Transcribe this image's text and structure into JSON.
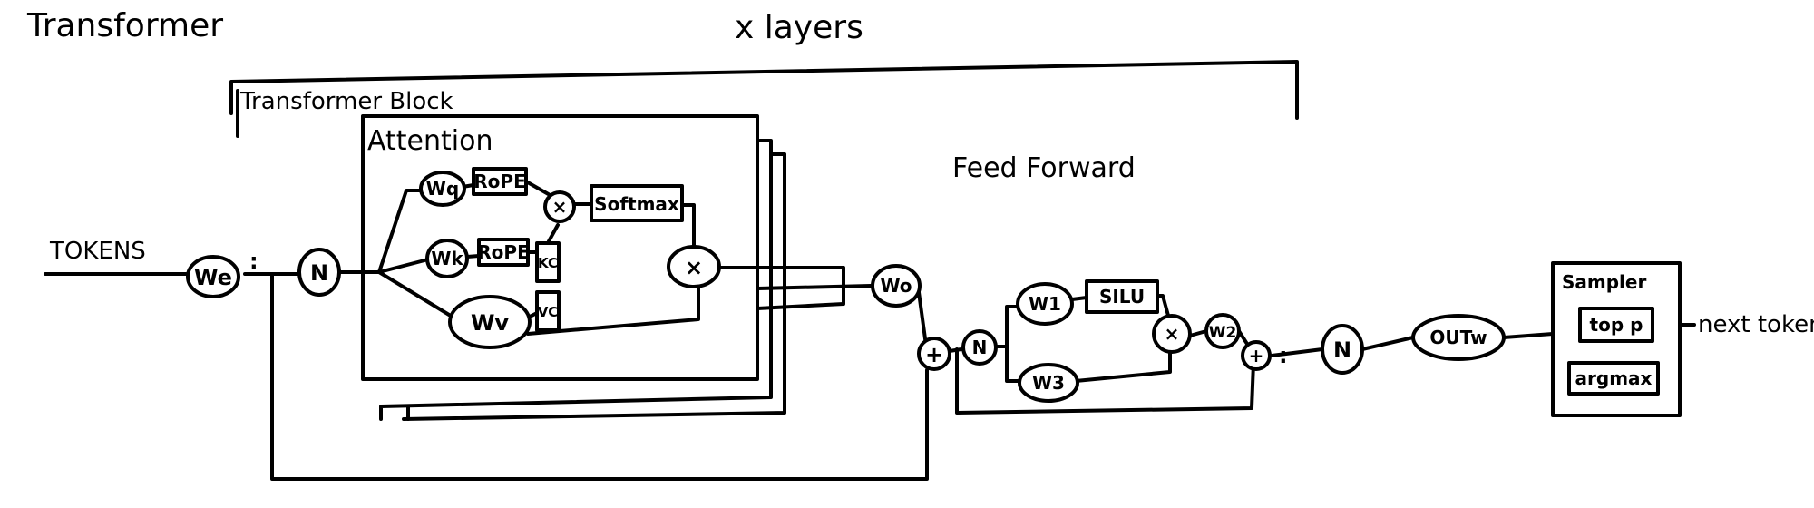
{
  "title": "Transformer",
  "layers_label": "x layers",
  "block_label": "Transformer Block",
  "attention_label": "Attention",
  "feedforward_label": "Feed Forward",
  "input_label": "TOKENS",
  "output_label": "next token",
  "nodes": {
    "we": "We",
    "norm1": "N",
    "wq": "Wq",
    "wk": "Wk",
    "wv": "Wv",
    "rope_q": "RoPE",
    "rope_k": "RoPE",
    "kc": "KC",
    "vc": "VC",
    "mul_qk": "×",
    "softmax": "Softmax",
    "mul_v": "×",
    "wo": "Wo",
    "add1": "+",
    "norm2": "N",
    "w1": "W1",
    "silu": "SILU",
    "w3": "W3",
    "mul_ff": "×",
    "w2": "W2",
    "add2": "+",
    "norm3": "N",
    "out": "OUTw"
  },
  "sampler": {
    "label": "Sampler",
    "options": [
      "top p",
      "argmax"
    ]
  }
}
